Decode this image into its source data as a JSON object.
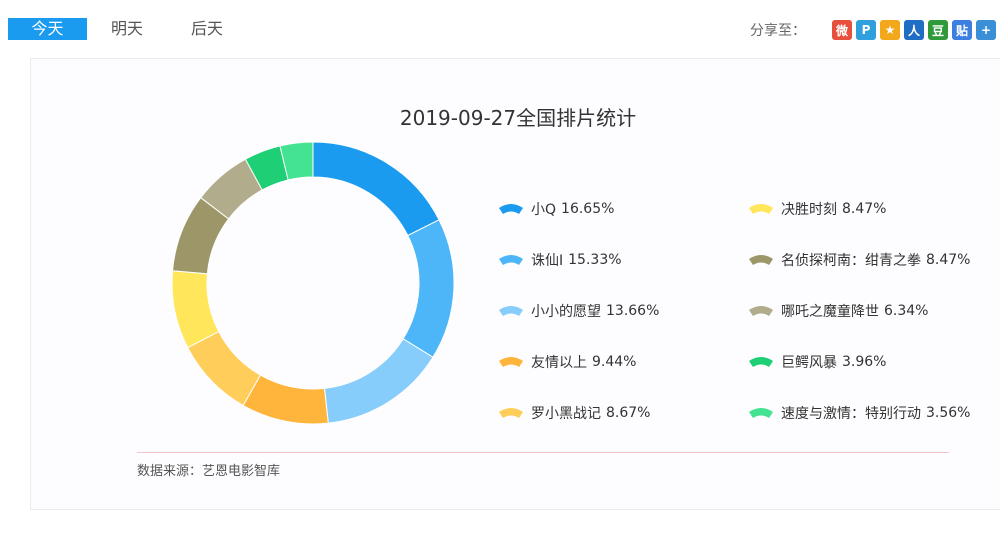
{
  "tabs": {
    "today": "今天",
    "tomorrow": "明天",
    "after_tomorrow": "后天"
  },
  "share": {
    "label": "分享至：",
    "icons": [
      {
        "name": "weibo-icon",
        "glyph": "微",
        "color": "#e6503c"
      },
      {
        "name": "qzone-icon",
        "glyph": "P",
        "color": "#2f9fde"
      },
      {
        "name": "qq-star-icon",
        "glyph": "★",
        "color": "#f3a81b"
      },
      {
        "name": "renren-icon",
        "glyph": "人",
        "color": "#1f6ec3"
      },
      {
        "name": "douban-icon",
        "glyph": "豆",
        "color": "#2f9a3a"
      },
      {
        "name": "tieba-icon",
        "glyph": "贴",
        "color": "#3b7fe0"
      },
      {
        "name": "more-share-icon",
        "glyph": "+",
        "color": "#3a8fd6"
      }
    ]
  },
  "chart_data": {
    "type": "pie",
    "title": "2019-09-27全国排片统计",
    "series": [
      {
        "name": "小Q",
        "value": 16.65,
        "label": "16.65%",
        "color": "#1a9bef"
      },
      {
        "name": "诛仙Ⅰ",
        "value": 15.33,
        "label": "15.33%",
        "color": "#4db6f8"
      },
      {
        "name": "小小的愿望",
        "value": 13.66,
        "label": "13.66%",
        "color": "#86cdfb"
      },
      {
        "name": "友情以上",
        "value": 9.44,
        "label": "9.44%",
        "color": "#ffb43c"
      },
      {
        "name": "罗小黑战记",
        "value": 8.67,
        "label": "8.67%",
        "color": "#ffce5a"
      },
      {
        "name": "决胜时刻",
        "value": 8.47,
        "label": "8.47%",
        "color": "#ffe65a"
      },
      {
        "name": "名侦探柯南：绀青之拳",
        "value": 8.47,
        "label": "8.47%",
        "color": "#9c9668"
      },
      {
        "name": "哪吒之魔童降世",
        "value": 6.34,
        "label": "6.34%",
        "color": "#b1ad8c"
      },
      {
        "name": "巨鳄风暴",
        "value": 3.96,
        "label": "3.96%",
        "color": "#1fcf76"
      },
      {
        "name": "速度与激情：特别行动",
        "value": 3.56,
        "label": "3.56%",
        "color": "#44e391"
      }
    ]
  },
  "source": "数据来源：艺恩电影智库"
}
